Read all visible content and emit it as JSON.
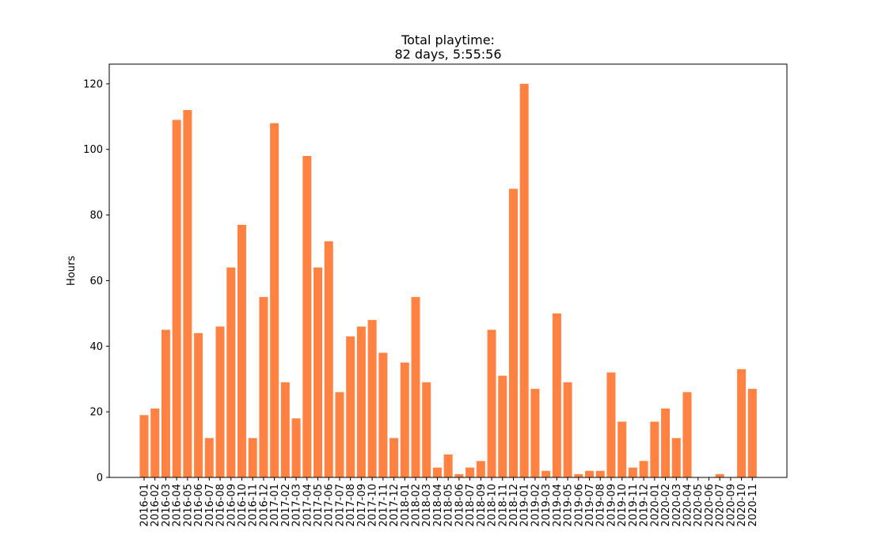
{
  "chart_data": {
    "type": "bar",
    "title": [
      "Total playtime:",
      "82 days, 5:55:56"
    ],
    "xlabel": "",
    "ylabel": "Hours",
    "ylim": [
      0,
      126
    ],
    "yticks": [
      0,
      20,
      40,
      60,
      80,
      100,
      120
    ],
    "grid": false,
    "bar_color": "#ff8243",
    "categories": [
      "2016-01",
      "2016-02",
      "2016-03",
      "2016-04",
      "2016-05",
      "2016-06",
      "2016-07",
      "2016-08",
      "2016-09",
      "2016-10",
      "2016-11",
      "2016-12",
      "2017-01",
      "2017-02",
      "2017-03",
      "2017-04",
      "2017-05",
      "2017-06",
      "2017-07",
      "2017-08",
      "2017-09",
      "2017-10",
      "2017-11",
      "2017-12",
      "2018-01",
      "2018-02",
      "2018-03",
      "2018-04",
      "2018-05",
      "2018-06",
      "2018-07",
      "2018-09",
      "2018-10",
      "2018-11",
      "2018-12",
      "2019-01",
      "2019-02",
      "2019-03",
      "2019-04",
      "2019-05",
      "2019-06",
      "2019-07",
      "2019-08",
      "2019-09",
      "2019-10",
      "2019-11",
      "2019-12",
      "2020-01",
      "2020-02",
      "2020-03",
      "2020-04",
      "2020-05",
      "2020-06",
      "2020-07",
      "2020-09",
      "2020-10",
      "2020-11"
    ],
    "values": [
      19,
      21,
      45,
      109,
      112,
      44,
      12,
      46,
      64,
      77,
      12,
      55,
      108,
      29,
      18,
      98,
      64,
      72,
      26,
      43,
      46,
      48,
      38,
      12,
      35,
      55,
      29,
      3,
      7,
      1,
      3,
      5,
      45,
      31,
      88,
      120,
      27,
      2,
      50,
      29,
      1,
      2,
      2,
      32,
      17,
      3,
      5,
      17,
      21,
      12,
      26,
      0,
      0,
      1,
      0,
      33,
      27
    ]
  }
}
